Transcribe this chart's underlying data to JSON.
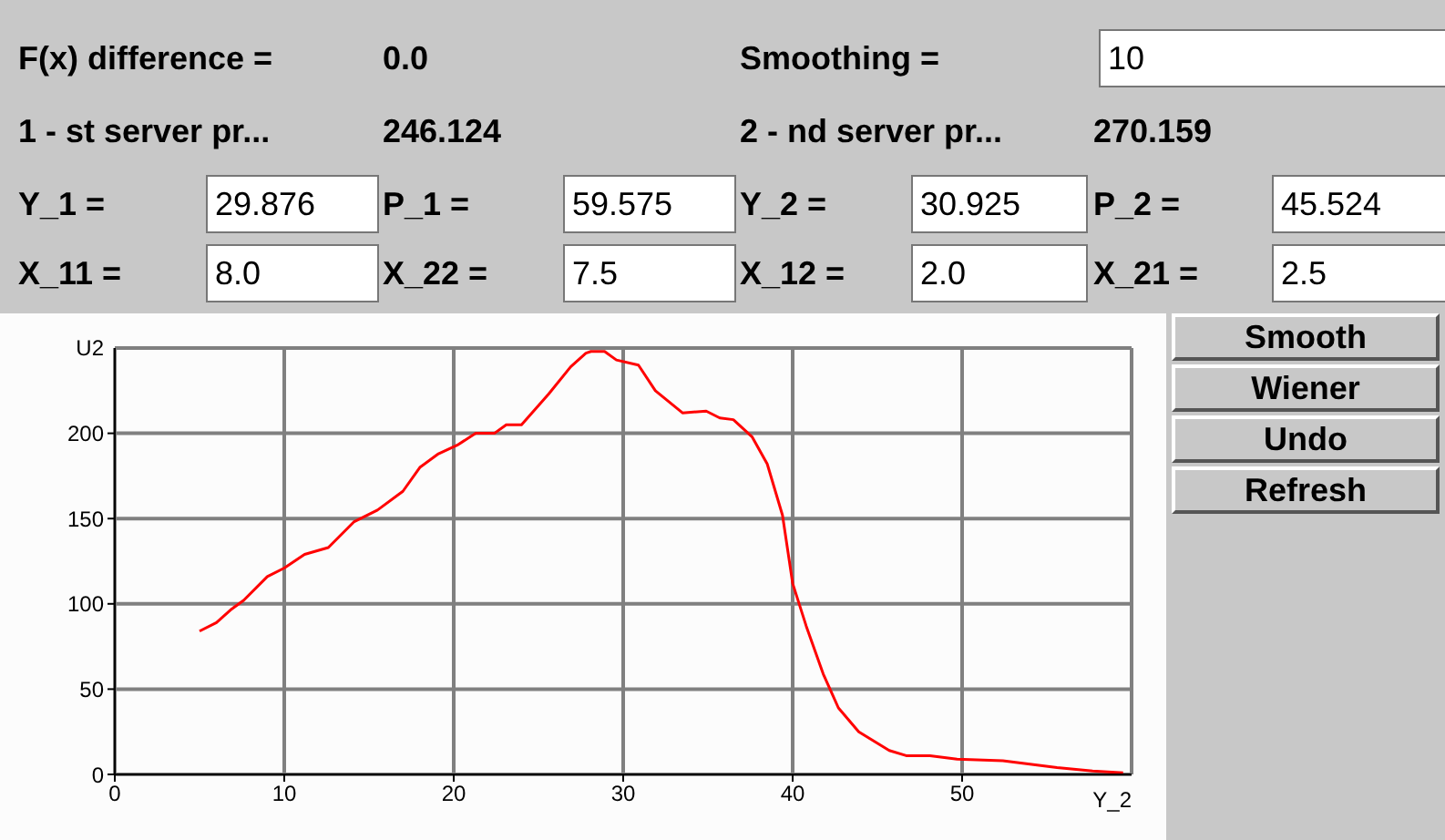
{
  "chart_data": {
    "type": "line",
    "annotations": [
      "F(x) difference =",
      "0.0",
      "Smoothing =",
      "10",
      "1 - st server pr...",
      "246.124",
      "2 - nd server pr...",
      "270.159",
      "Y_1 =",
      "29.876",
      "P_1 =",
      "59.575",
      "Y_2 =",
      "30.925",
      "P_2 =",
      "45.524",
      "X_11 =",
      "8.0",
      "X_22 =",
      "7.5",
      "X_12 =",
      "2.0",
      "X_21 =",
      "2.5",
      "Smooth",
      "Wiener",
      "Undo",
      "Refresh"
    ],
    "x": [
      5,
      6,
      6.9,
      7.6,
      9,
      10,
      11.2,
      12.6,
      14.1,
      15.5,
      17,
      18,
      19.1,
      20.2,
      21.3,
      22.4,
      23.1,
      24,
      25.6,
      26.9,
      27.8,
      28.1,
      28.9,
      29.6,
      30.9,
      31.9,
      33.5,
      34.9,
      35.7,
      36.5,
      37.6,
      38.5,
      39.4,
      40,
      40.8,
      41.8,
      42.7,
      43.9,
      45.7,
      46.7,
      48.1,
      49.7,
      52.4,
      55.6,
      57.7,
      59.5
    ],
    "series": [
      {
        "color": "#ff0000",
        "values": [
          84,
          89,
          97,
          102,
          116,
          121,
          129,
          133,
          148,
          155,
          166,
          180,
          188,
          193,
          200,
          200,
          205,
          205,
          223,
          239,
          247,
          248,
          248,
          243,
          240,
          225,
          212,
          213,
          209,
          208,
          198,
          182,
          152,
          112,
          87,
          59,
          39,
          25,
          14,
          11,
          11,
          9,
          8,
          4,
          2,
          1
        ]
      }
    ],
    "xlabel": "Y_2",
    "ylabel": "U2",
    "xlim": [
      0,
      60
    ],
    "xticks": [
      0,
      10,
      20,
      30,
      40,
      50
    ],
    "ylim": [
      0,
      250
    ],
    "yticks": [
      0,
      50,
      100,
      150,
      200
    ],
    "grid": true,
    "legend": false,
    "marker": "none",
    "line_style": "solid"
  }
}
